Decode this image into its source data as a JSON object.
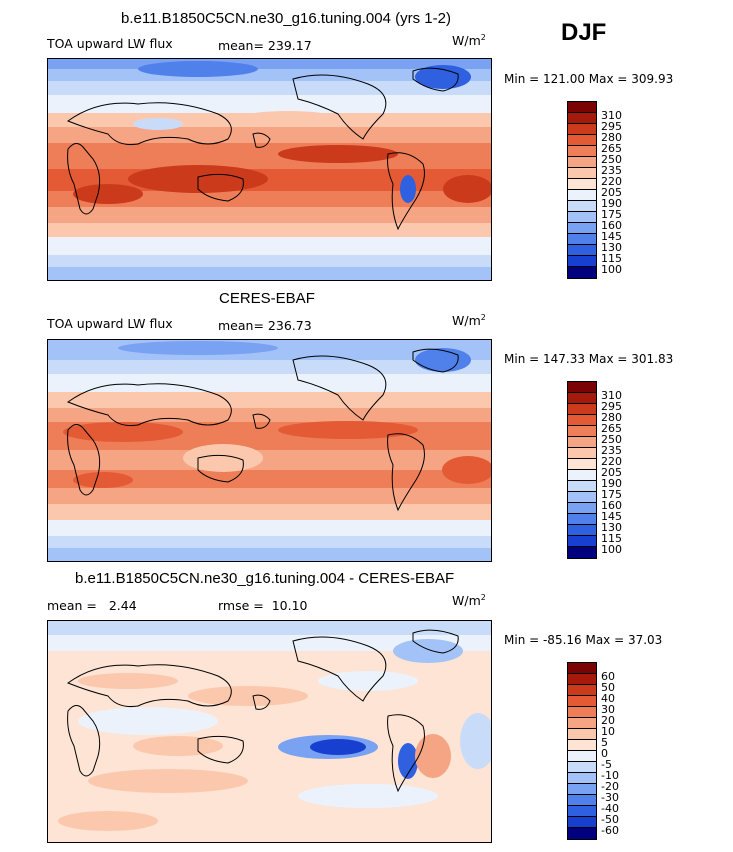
{
  "season": "DJF",
  "colors": {
    "levels": [
      "#00007f",
      "#0a20b0",
      "#1840d0",
      "#2e60e0",
      "#5080ea",
      "#7aa2f2",
      "#a3c3f8",
      "#c8dcfa",
      "#ecf2fc",
      "#fde4d4",
      "#fbc8ae",
      "#f6a584",
      "#ee7e58",
      "#e35a35",
      "#cc3a1c",
      "#a51a0a",
      "#7a0404"
    ],
    "land_outline": "#000000"
  },
  "chart_data": [
    {
      "type": "heatmap",
      "title": "b.e11.B1850C5CN.ne30_g16.tuning.004 (yrs 1-2)",
      "variable": "TOA upward LW flux",
      "stat_label": "mean=",
      "stat_value": "239.17",
      "units": "W/m",
      "units_sup": "2",
      "range_label": "Min = 121.00 Max = 309.93",
      "min": 121.0,
      "max": 309.93,
      "colorbar_ticks": [
        "310",
        "295",
        "280",
        "265",
        "250",
        "235",
        "220",
        "205",
        "190",
        "175",
        "160",
        "145",
        "130",
        "115",
        "100"
      ]
    },
    {
      "type": "heatmap",
      "title": "CERES-EBAF",
      "variable": "TOA upward LW flux",
      "stat_label": "mean=",
      "stat_value": "236.73",
      "units": "W/m",
      "units_sup": "2",
      "range_label": "Min = 147.33 Max = 301.83",
      "min": 147.33,
      "max": 301.83,
      "colorbar_ticks": [
        "310",
        "295",
        "280",
        "265",
        "250",
        "235",
        "220",
        "205",
        "190",
        "175",
        "160",
        "145",
        "130",
        "115",
        "100"
      ]
    },
    {
      "type": "heatmap",
      "title": "b.e11.B1850C5CN.ne30_g16.tuning.004 - CERES-EBAF",
      "mean_label": "mean =",
      "mean_value": "2.44",
      "rmse_label": "rmse =",
      "rmse_value": "10.10",
      "units": "W/m",
      "units_sup": "2",
      "range_label": "Min = -85.16 Max = 37.03",
      "min": -85.16,
      "max": 37.03,
      "colorbar_ticks": [
        "60",
        "50",
        "40",
        "30",
        "20",
        "10",
        "5",
        "0",
        "-5",
        "-10",
        "-20",
        "-30",
        "-40",
        "-50",
        "-60"
      ]
    }
  ]
}
